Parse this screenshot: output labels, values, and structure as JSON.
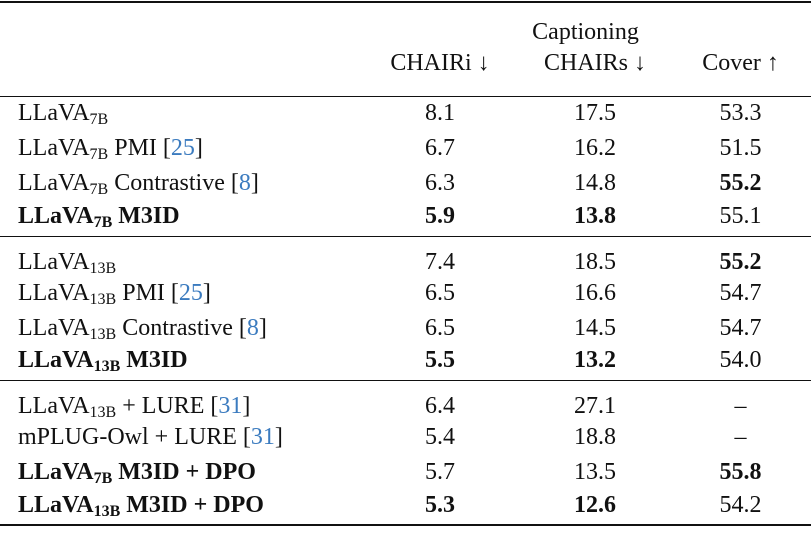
{
  "header": {
    "group": "Captioning",
    "columns": [
      "CHAIRi ↓",
      "CHAIRs ↓",
      "Cover ↑"
    ]
  },
  "groups": [
    {
      "rows": [
        {
          "method": [
            {
              "text": "LLaVA"
            },
            {
              "text": "7B",
              "sub": true
            }
          ],
          "bold": false,
          "cells": [
            "8.1",
            "17.5",
            "53.3"
          ],
          "bold_cells": []
        },
        {
          "method": [
            {
              "text": "LLaVA"
            },
            {
              "text": "7B",
              "sub": true
            },
            {
              "text": " PMI ["
            },
            {
              "text": "25",
              "cite": true
            },
            {
              "text": "]"
            }
          ],
          "bold": false,
          "cells": [
            "6.7",
            "16.2",
            "51.5"
          ],
          "bold_cells": []
        },
        {
          "method": [
            {
              "text": "LLaVA"
            },
            {
              "text": "7B",
              "sub": true
            },
            {
              "text": " Contrastive ["
            },
            {
              "text": "8",
              "cite": true
            },
            {
              "text": "]"
            }
          ],
          "bold": false,
          "cells": [
            "6.3",
            "14.8",
            "55.2"
          ],
          "bold_cells": [
            2
          ]
        },
        {
          "method": [
            {
              "text": "LLaVA"
            },
            {
              "text": "7B",
              "sub": true
            },
            {
              "text": " M3ID"
            }
          ],
          "bold": true,
          "cells": [
            "5.9",
            "13.8",
            "55.1"
          ],
          "bold_cells": [
            0,
            1
          ]
        }
      ]
    },
    {
      "rows": [
        {
          "method": [
            {
              "text": "LLaVA"
            },
            {
              "text": "13B",
              "sub": true
            }
          ],
          "bold": false,
          "cells": [
            "7.4",
            "18.5",
            "55.2"
          ],
          "bold_cells": [
            2
          ]
        },
        {
          "method": [
            {
              "text": "LLaVA"
            },
            {
              "text": "13B",
              "sub": true
            },
            {
              "text": " PMI ["
            },
            {
              "text": "25",
              "cite": true
            },
            {
              "text": "]"
            }
          ],
          "bold": false,
          "cells": [
            "6.5",
            "16.6",
            "54.7"
          ],
          "bold_cells": []
        },
        {
          "method": [
            {
              "text": "LLaVA"
            },
            {
              "text": "13B",
              "sub": true
            },
            {
              "text": " Contrastive ["
            },
            {
              "text": "8",
              "cite": true
            },
            {
              "text": "]"
            }
          ],
          "bold": false,
          "cells": [
            "6.5",
            "14.5",
            "54.7"
          ],
          "bold_cells": []
        },
        {
          "method": [
            {
              "text": "LLaVA"
            },
            {
              "text": "13B",
              "sub": true
            },
            {
              "text": " M3ID"
            }
          ],
          "bold": true,
          "cells": [
            "5.5",
            "13.2",
            "54.0"
          ],
          "bold_cells": [
            0,
            1
          ]
        }
      ]
    },
    {
      "rows": [
        {
          "method": [
            {
              "text": "LLaVA"
            },
            {
              "text": "13B",
              "sub": true
            },
            {
              "text": " + LURE ["
            },
            {
              "text": "31",
              "cite": true
            },
            {
              "text": "]"
            }
          ],
          "bold": false,
          "cells": [
            "6.4",
            "27.1",
            "–"
          ],
          "bold_cells": []
        },
        {
          "method": [
            {
              "text": "mPLUG-Owl + LURE ["
            },
            {
              "text": "31",
              "cite": true
            },
            {
              "text": "]"
            }
          ],
          "bold": false,
          "cells": [
            "5.4",
            "18.8",
            "–"
          ],
          "bold_cells": []
        },
        {
          "method": [
            {
              "text": "LLaVA"
            },
            {
              "text": "7B",
              "sub": true
            },
            {
              "text": " M3ID + DPO"
            }
          ],
          "bold": true,
          "cells": [
            "5.7",
            "13.5",
            "55.8"
          ],
          "bold_cells": [
            2
          ]
        },
        {
          "method": [
            {
              "text": "LLaVA"
            },
            {
              "text": "13B",
              "sub": true
            },
            {
              "text": " M3ID + DPO"
            }
          ],
          "bold": true,
          "cells": [
            "5.3",
            "12.6",
            "54.2"
          ],
          "bold_cells": [
            0,
            1
          ]
        }
      ]
    }
  ]
}
